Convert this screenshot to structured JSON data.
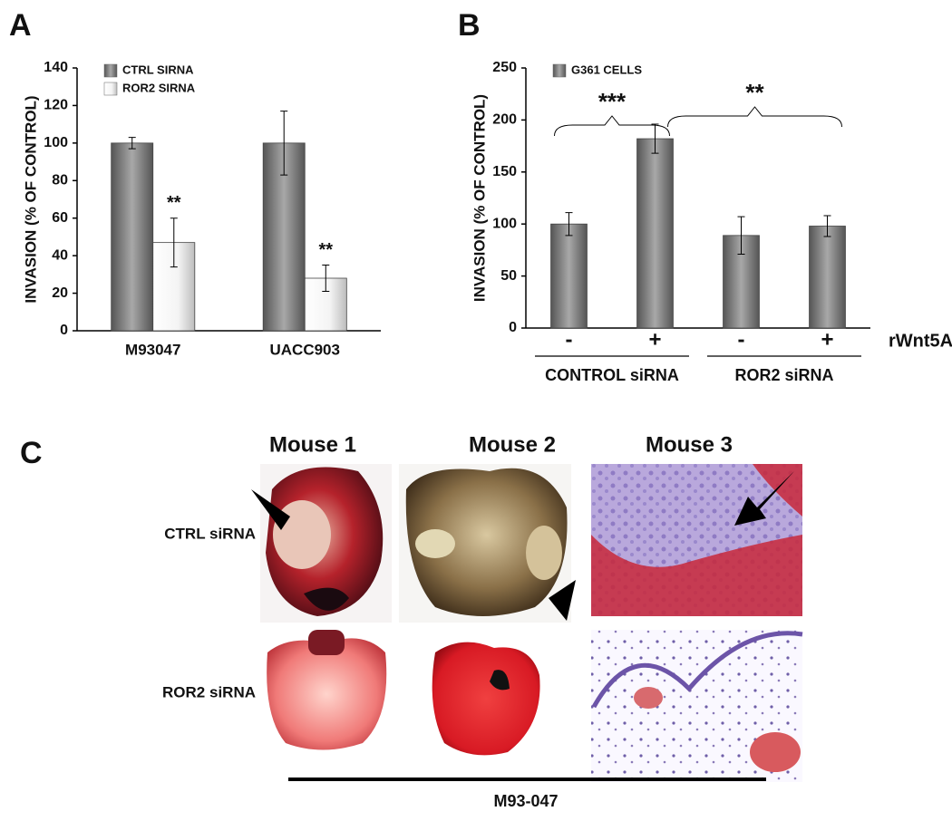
{
  "chart_data": [
    {
      "type": "bar",
      "panel_label": "A",
      "y_label": "INVASION (% OF CONTROL)",
      "categories": [
        "M93047",
        "UACC903"
      ],
      "series": [
        {
          "name": "CTRL SIRNA",
          "color": "#7a7a7a",
          "values": [
            100,
            100
          ],
          "errors": [
            3,
            17
          ],
          "annotations": [
            null,
            null
          ]
        },
        {
          "name": "ROR2 SIRNA",
          "color": "#f2f2f2",
          "values": [
            47,
            28
          ],
          "errors": [
            13,
            7
          ],
          "annotations": [
            "**",
            "**"
          ]
        }
      ],
      "ylim": [
        0,
        140
      ],
      "yticks": [
        0,
        20,
        40,
        60,
        80,
        100,
        120,
        140
      ],
      "legend": "top-left"
    },
    {
      "type": "bar",
      "panel_label": "B",
      "y_label": "INVASION (% OF CONTROL)",
      "categories": [
        "-",
        "+",
        "-",
        "+"
      ],
      "x_side_label": "rWnt5A",
      "groups": [
        "CONTROL siRNA",
        "ROR2 siRNA"
      ],
      "brackets": [
        "***",
        "**"
      ],
      "series": [
        {
          "name": "G361 CELLS",
          "color": "#7a7a7a",
          "values": [
            100,
            182,
            89,
            98
          ],
          "errors": [
            11,
            14,
            18,
            10
          ]
        }
      ],
      "ylim": [
        0,
        250
      ],
      "yticks": [
        0,
        50,
        100,
        150,
        200,
        250
      ],
      "legend": "top-left"
    }
  ],
  "panel_c": {
    "label": "C",
    "columns": [
      "Mouse 1",
      "Mouse 2",
      "Mouse 3"
    ],
    "rows": [
      "CTRL siRNA",
      "ROR2 siRNA"
    ],
    "footer": "M93-047"
  }
}
